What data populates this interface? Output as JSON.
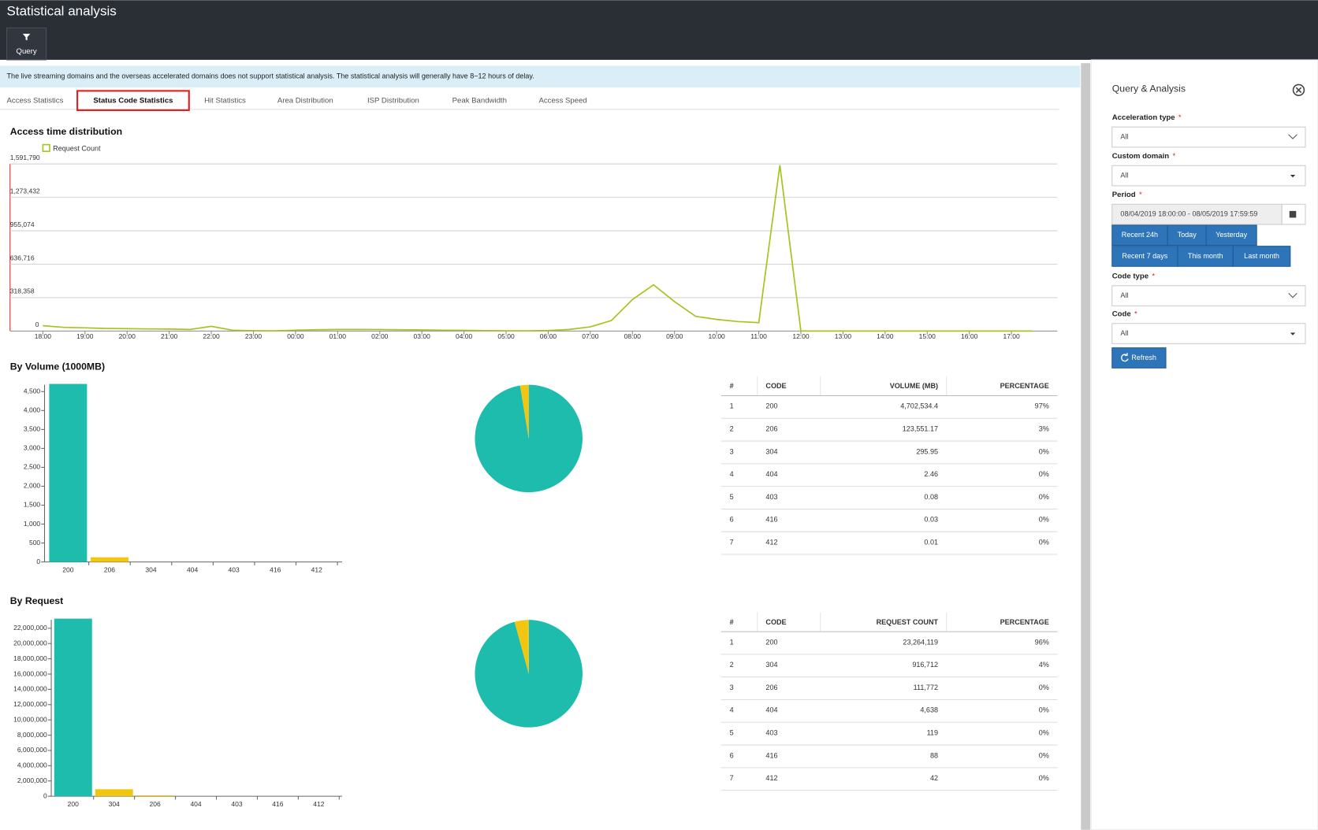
{
  "header": {
    "title": "Statistical analysis",
    "query": "Query"
  },
  "notice": "The live streaming domains and the overseas accelerated domains does not support statistical analysis. The statistical analysis will generally have 8~12 hours of delay.",
  "tabs": {
    "items": [
      "Access Statistics",
      "Status Code Statistics",
      "Hit Statistics",
      "Area Distribution",
      "ISP Distribution",
      "Peak Bandwidth",
      "Access Speed"
    ],
    "active": 1
  },
  "access_chart": {
    "type": "line",
    "title": "Access time distribution",
    "x": [
      "18:00",
      null,
      "19:00",
      null,
      "20:00",
      null,
      "21:00",
      null,
      "22:00",
      null,
      "23:00",
      null,
      "00:00",
      null,
      "01:00",
      null,
      "02:00",
      null,
      "03:00",
      null,
      "04:00",
      null,
      "05:00",
      null,
      "06:00",
      null,
      "07:00",
      null,
      "08:00",
      null,
      "09:00",
      null,
      "10:00",
      null,
      "11:00",
      null,
      "12:00",
      null,
      "13:00",
      null,
      "14:00",
      null,
      "15:00",
      null,
      "16:00",
      null,
      "17:00",
      null
    ],
    "series": [
      {
        "name": "Request Count",
        "color": "#a3c51e",
        "values": [
          50000,
          35000,
          30000,
          25000,
          22000,
          20000,
          18000,
          15000,
          45000,
          8000,
          3000,
          2000,
          8000,
          12000,
          15000,
          15000,
          14000,
          12000,
          10000,
          8000,
          6000,
          4000,
          2000,
          2000,
          5000,
          15000,
          40000,
          100000,
          300000,
          440000,
          280000,
          140000,
          110000,
          90000,
          80000,
          1580000,
          0,
          0,
          0,
          0,
          0,
          0,
          0,
          0,
          0,
          0,
          0,
          0
        ]
      }
    ],
    "ylim": [
      0,
      1591790
    ],
    "yticks": [
      0,
      {
        "value": 318358,
        "label": "318,358"
      },
      {
        "value": 636716,
        "label": "636,716"
      },
      {
        "value": 955074,
        "label": "955,074"
      },
      {
        "value": 1273432,
        "label": "1,273,432"
      },
      {
        "value": 1591790,
        "label": "1,591,790"
      }
    ],
    "grid": true
  },
  "volume": {
    "title": "By Volume (1000MB)",
    "bar": {
      "type": "bar",
      "categories": [
        "200",
        "206",
        "304",
        "404",
        "403",
        "416",
        "412"
      ],
      "values": [
        4702.5344,
        123.55117,
        0.29595,
        0.00246,
        8e-05,
        3e-05,
        1e-05
      ],
      "colors": [
        "#1ebcad",
        "#f2c511",
        "#f2c511",
        "#f2c511",
        "#f2c511",
        "#f2c511",
        "#f2c511"
      ],
      "ylim": [
        0,
        4680
      ],
      "yticks": [
        0,
        500,
        {
          "value": 1000,
          "label": "1,000"
        },
        {
          "value": 1500,
          "label": "1,500"
        },
        {
          "value": 2000,
          "label": "2,000"
        },
        {
          "value": 2500,
          "label": "2,500"
        },
        {
          "value": 3000,
          "label": "3,000"
        },
        {
          "value": 3500,
          "label": "3,500"
        },
        {
          "value": 4000,
          "label": "4,000"
        },
        {
          "value": 4500,
          "label": "4,500"
        }
      ]
    },
    "pie": {
      "type": "pie"
    },
    "table": {
      "columns": [
        "#",
        "CODE",
        "VOLUME (MB)",
        "PERCENTAGE"
      ],
      "rows": [
        [
          1,
          "200",
          {
            "value": 4702534.4,
            "label": "4,702,534.4"
          },
          "97%"
        ],
        [
          2,
          "206",
          {
            "value": 123551.17,
            "label": "123,551.17"
          },
          "3%"
        ],
        [
          3,
          "304",
          295.95,
          "0%"
        ],
        [
          4,
          "404",
          2.46,
          "0%"
        ],
        [
          5,
          "403",
          0.08,
          "0%"
        ],
        [
          6,
          "416",
          0.03,
          "0%"
        ],
        [
          7,
          "412",
          0.01,
          "0%"
        ]
      ]
    }
  },
  "request": {
    "title": "By Request",
    "bar": {
      "type": "bar",
      "categories": [
        "200",
        "304",
        "206",
        "404",
        "403",
        "416",
        "412"
      ],
      "values": [
        23264119,
        916712,
        111772,
        4638,
        119,
        88,
        42
      ],
      "colors": [
        "#1ebcad",
        "#f2c511",
        "#f2c511",
        "#f2c511",
        "#f2c511",
        "#f2c511",
        "#f2c511"
      ],
      "ylim": [
        0,
        23100000
      ],
      "yticks": [
        0,
        {
          "value": 2000000,
          "label": "2,000,000"
        },
        {
          "value": 4000000,
          "label": "4,000,000"
        },
        {
          "value": 6000000,
          "label": "6,000,000"
        },
        {
          "value": 8000000,
          "label": "8,000,000"
        },
        {
          "value": 10000000,
          "label": "10,000,000"
        },
        {
          "value": 12000000,
          "label": "12,000,000"
        },
        {
          "value": 14000000,
          "label": "14,000,000"
        },
        {
          "value": 16000000,
          "label": "16,000,000"
        },
        {
          "value": 18000000,
          "label": "18,000,000"
        },
        {
          "value": 20000000,
          "label": "20,000,000"
        },
        {
          "value": 22000000,
          "label": "22,000,000"
        }
      ]
    },
    "pie": {
      "type": "pie"
    },
    "table": {
      "columns": [
        "#",
        "CODE",
        "REQUEST COUNT",
        "PERCENTAGE"
      ],
      "rows": [
        [
          1,
          "200",
          {
            "value": 23264119,
            "label": "23,264,119"
          },
          "96%"
        ],
        [
          2,
          "304",
          {
            "value": 916712,
            "label": "916,712"
          },
          "4%"
        ],
        [
          3,
          "206",
          {
            "value": 111772,
            "label": "111,772"
          },
          "0%"
        ],
        [
          4,
          "404",
          {
            "value": 4638,
            "label": "4,638"
          },
          "0%"
        ],
        [
          5,
          "403",
          119,
          "0%"
        ],
        [
          6,
          "416",
          88,
          "0%"
        ],
        [
          7,
          "412",
          42,
          "0%"
        ]
      ]
    }
  },
  "sidebar": {
    "title": "Query & Analysis",
    "required": "*",
    "fields": [
      {
        "label": "Acceleration type",
        "value": "All"
      },
      {
        "label": "Custom domain",
        "value": "All"
      },
      {
        "label": "Period",
        "value": "08/04/2019 18:00:00 - 08/05/2019 17:59:59"
      },
      {
        "label": "Code type",
        "value": "All"
      },
      {
        "label": "Code",
        "value": "All"
      }
    ],
    "quick_ranges": [
      "Recent 24h",
      "Today",
      "Yesterday",
      "Recent 7 days",
      "This month",
      "Last month"
    ],
    "refresh": "Refresh"
  }
}
